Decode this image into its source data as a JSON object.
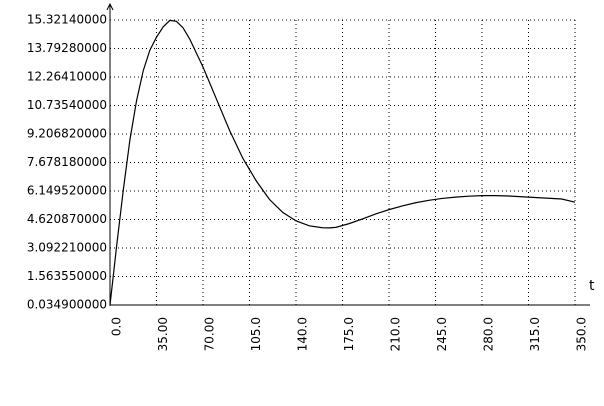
{
  "chart_data": {
    "type": "line",
    "x_label": "t",
    "color": "#000000",
    "grid": true,
    "x": [
      0,
      5,
      10,
      15,
      20,
      25,
      30,
      35,
      40,
      45,
      50,
      55,
      60,
      70,
      80,
      90,
      100,
      110,
      120,
      130,
      140,
      150,
      160,
      165,
      170,
      180,
      190,
      200,
      210,
      220,
      230,
      240,
      250,
      260,
      270,
      280,
      290,
      300,
      310,
      320,
      330,
      340,
      350
    ],
    "values": [
      0.0349,
      3.2,
      6.2,
      8.9,
      11.0,
      12.6,
      13.7,
      14.4,
      14.95,
      15.3,
      15.25,
      14.9,
      14.3,
      12.8,
      11.1,
      9.4,
      7.9,
      6.7,
      5.7,
      5.0,
      4.55,
      4.28,
      4.18,
      4.17,
      4.2,
      4.4,
      4.65,
      4.92,
      5.15,
      5.35,
      5.52,
      5.65,
      5.75,
      5.82,
      5.87,
      5.9,
      5.9,
      5.88,
      5.84,
      5.8,
      5.76,
      5.72,
      5.55
    ],
    "xlim": [
      0,
      350
    ],
    "xticks": [
      {
        "value": 0,
        "label": "0.0"
      },
      {
        "value": 35,
        "label": "35.00"
      },
      {
        "value": 70,
        "label": "70.00"
      },
      {
        "value": 105,
        "label": "105.0"
      },
      {
        "value": 140,
        "label": "140.0"
      },
      {
        "value": 175,
        "label": "175.0"
      },
      {
        "value": 210,
        "label": "210.0"
      },
      {
        "value": 245,
        "label": "245.0"
      },
      {
        "value": 280,
        "label": "280.0"
      },
      {
        "value": 315,
        "label": "315.0"
      },
      {
        "value": 350,
        "label": "350.0"
      }
    ],
    "ylim": [
      0.0349,
      15.3214
    ],
    "yticks": [
      {
        "value": 0.0349,
        "label": "0.034900000"
      },
      {
        "value": 1.56355,
        "label": "1.563550000"
      },
      {
        "value": 3.09221,
        "label": "3.092210000"
      },
      {
        "value": 4.62087,
        "label": "4.620870000"
      },
      {
        "value": 6.14952,
        "label": "6.149520000"
      },
      {
        "value": 7.67818,
        "label": "7.678180000"
      },
      {
        "value": 9.20682,
        "label": "9.206820000"
      },
      {
        "value": 10.7354,
        "label": "10.73540000"
      },
      {
        "value": 12.2641,
        "label": "12.26410000"
      },
      {
        "value": 13.7928,
        "label": "13.79280000"
      },
      {
        "value": 15.3214,
        "label": "15.32140000"
      }
    ]
  }
}
